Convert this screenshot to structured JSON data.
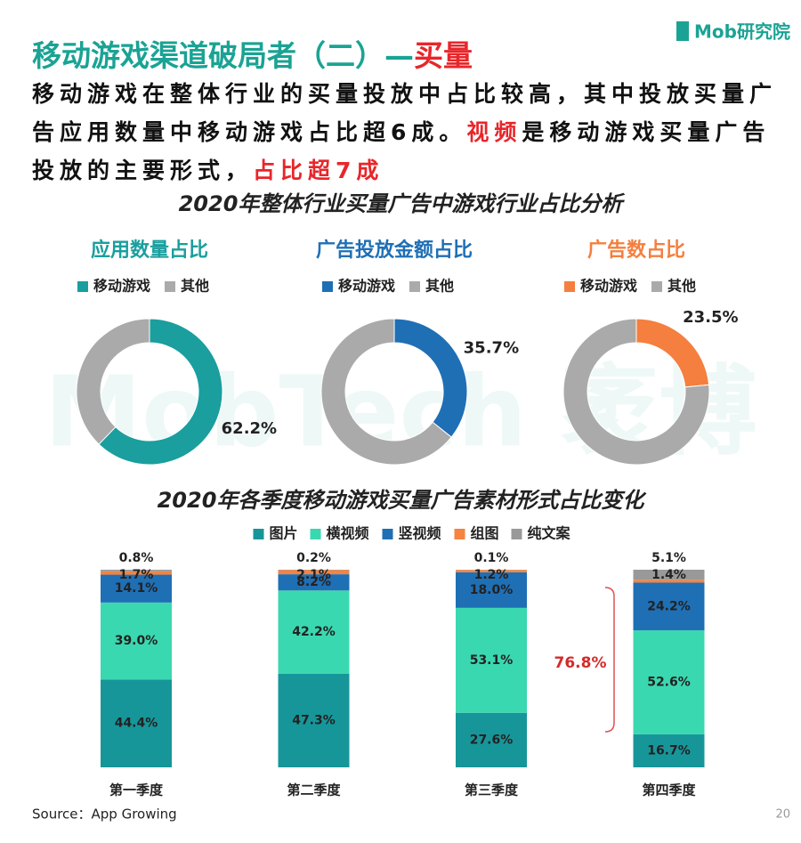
{
  "header": {
    "logo": "Mob研究院",
    "title": [
      "移动游戏渠道破局者（二）—",
      "买量"
    ],
    "title_colors": [
      "#1aa394",
      "#e8262a"
    ],
    "intro": [
      {
        "text": "移动游戏在整体行业的买量投放中占比较高，其中投放买量广告应用数量中移动游戏占比超6成。",
        "color": "#111"
      },
      {
        "text": "视频",
        "color": "#e8262a"
      },
      {
        "text": "是移动游戏买量广告投放的主要形式，",
        "color": "#111"
      },
      {
        "text": "占比超7成",
        "color": "#e8262a"
      }
    ],
    "section_title": "2020年整体行业买量广告中游戏行业占比分析",
    "watermark": "MobTech 袤博"
  },
  "chart_data": [
    {
      "type": "donut",
      "title": "应用数量占比",
      "title_color": "#1a9e9e",
      "categories": [
        "移动游戏",
        "其他"
      ],
      "colors": [
        "#1a9e9e",
        "#aaaaaa"
      ],
      "values": [
        62.2,
        37.8
      ],
      "value_labels": [
        "62.2%",
        null
      ]
    },
    {
      "type": "donut",
      "title": "广告投放金额占比",
      "title_color": "#1f6fb5",
      "categories": [
        "移动游戏",
        "其他"
      ],
      "colors": [
        "#1f6fb5",
        "#aaaaaa"
      ],
      "values": [
        35.7,
        64.3
      ],
      "value_labels": [
        "35.7%",
        null
      ]
    },
    {
      "type": "donut",
      "title": "广告数占比",
      "title_color": "#f47f3e",
      "categories": [
        "移动游戏",
        "其他"
      ],
      "colors": [
        "#f47f3e",
        "#aaaaaa"
      ],
      "values": [
        23.5,
        76.5
      ],
      "value_labels": [
        "23.5%",
        null
      ]
    },
    {
      "type": "bar",
      "stacked": true,
      "title": "2020年各季度移动游戏买量广告素材形式占比变化",
      "categories": [
        "第一季度",
        "第二季度",
        "第三季度",
        "第四季度"
      ],
      "ylim": [
        0,
        100
      ],
      "series": [
        {
          "name": "图片",
          "color": "#17969a",
          "values": [
            44.4,
            47.3,
            27.6,
            16.7
          ],
          "value_labels": [
            "44.4%",
            "47.3%",
            "27.6%",
            "16.7%"
          ]
        },
        {
          "name": "横视频",
          "color": "#3ad8b0",
          "values": [
            39,
            42.2,
            53.1,
            52.6
          ],
          "value_labels": [
            "39.0%",
            "42.2%",
            "53.1%",
            "52.6%"
          ]
        },
        {
          "name": "竖视频",
          "color": "#1f6fb5",
          "values": [
            14.1,
            8.2,
            18,
            24.2
          ],
          "value_labels": [
            "14.1%",
            "8.2%",
            "18.0%",
            "24.2%"
          ]
        },
        {
          "name": "组图",
          "color": "#f4843f",
          "values": [
            1.7,
            2.1,
            1.2,
            1.4
          ],
          "value_labels": [
            "1.7%",
            "2.1%",
            "1.2%",
            "1.4%"
          ]
        },
        {
          "name": "纯文案",
          "color": "#999999",
          "values": [
            0.8,
            0.2,
            0.1,
            5.1
          ],
          "value_labels": [
            "0.8%",
            "0.2%",
            "0.1%",
            "5.1%"
          ]
        }
      ],
      "annotation": {
        "text": "76.8%",
        "color": "#d42a2a"
      }
    }
  ],
  "footer": {
    "source": "Source：App Growing",
    "page": "20"
  }
}
